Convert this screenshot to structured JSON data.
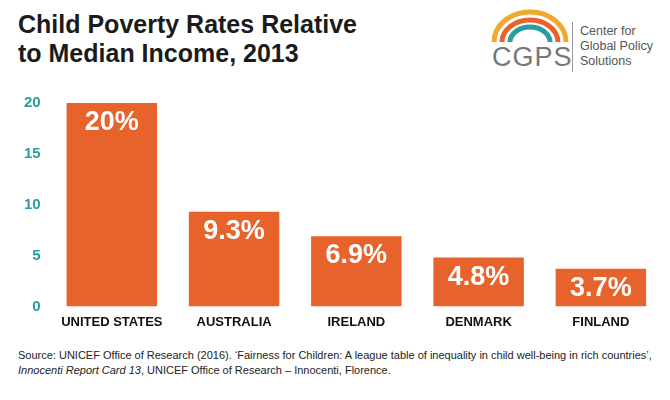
{
  "chart_data": {
    "type": "bar",
    "title": "Child Poverty Rates Relative to Median Income, 2013",
    "categories": [
      "UNITED STATES",
      "AUSTRALIA",
      "IRELAND",
      "DENMARK",
      "FINLAND"
    ],
    "values": [
      20,
      9.3,
      6.9,
      4.8,
      3.7
    ],
    "value_labels": [
      "20%",
      "9.3%",
      "6.9%",
      "4.8%",
      "3.7%"
    ],
    "data_labels": true,
    "color": "#e8632b",
    "ylim": [
      0,
      20
    ],
    "yticks": [
      0,
      5,
      10,
      15,
      20
    ],
    "grid": false,
    "logo": {
      "abbr": "CGPS",
      "name": "Center for Global Policy Solutions"
    },
    "source": [
      "Source: UNICEF Office of Research (2016). ‘Fairness for Children: A league table of inequality in child well-being in rich countries’, ",
      "Innocenti Report Card 13",
      ", UNICEF Office of Research – Innocenti, Florence."
    ]
  }
}
